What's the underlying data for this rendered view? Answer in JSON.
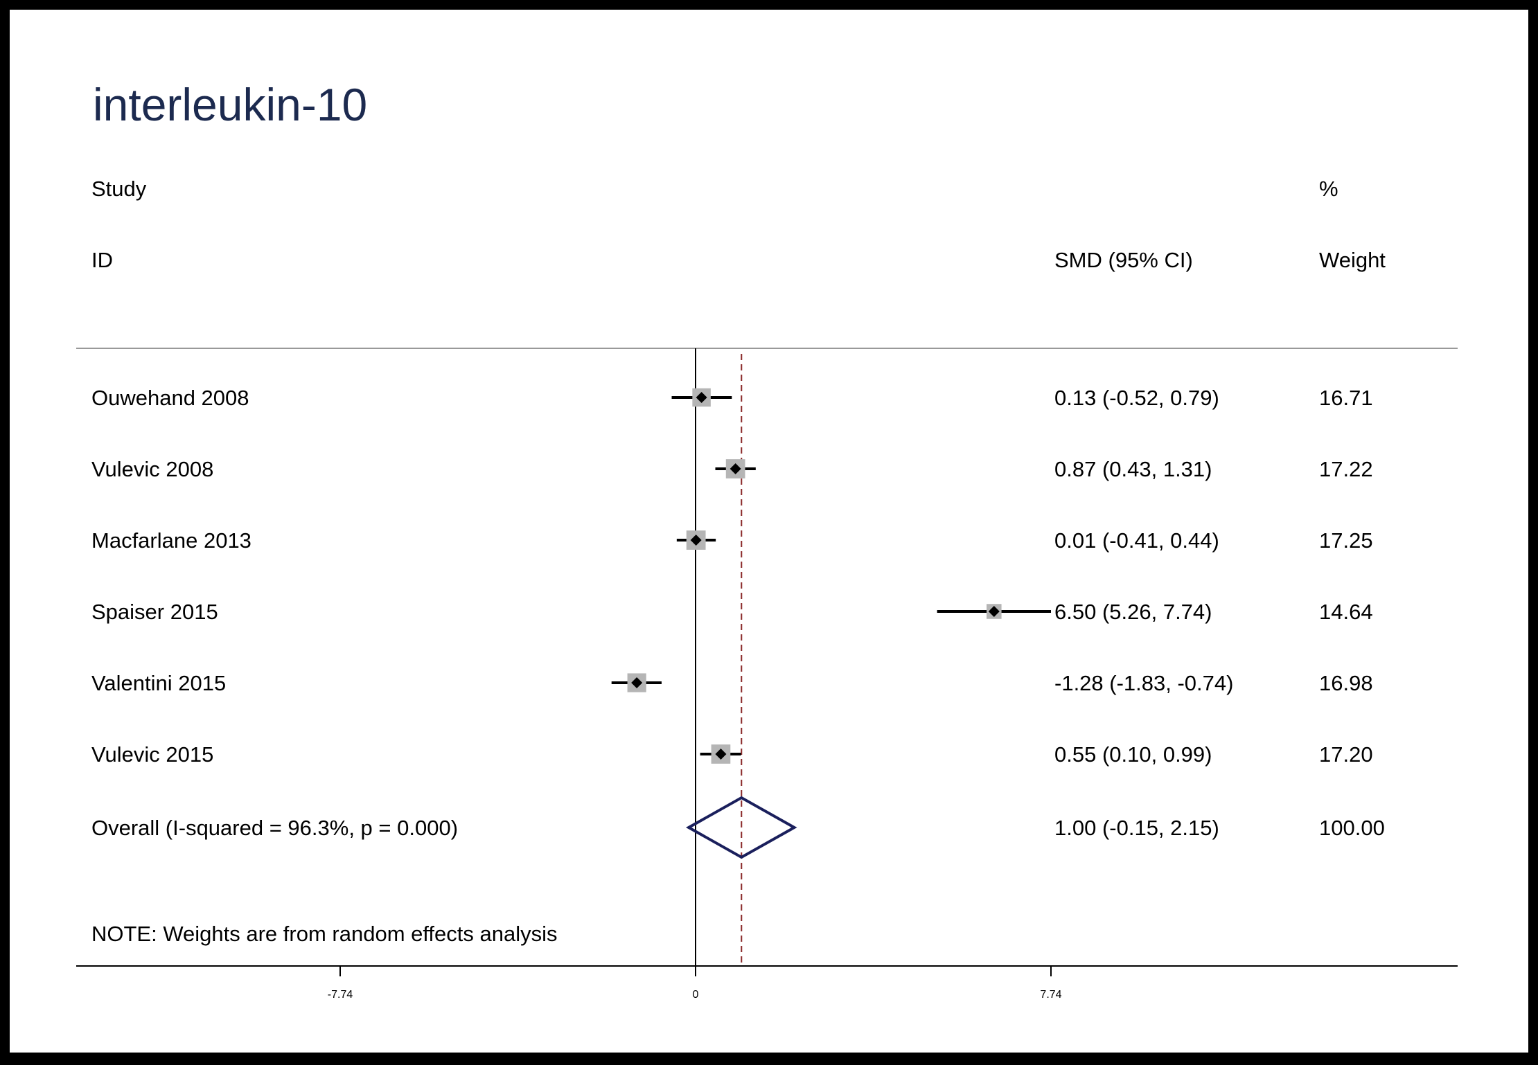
{
  "chart_data": {
    "type": "forest",
    "title": "interleukin-10",
    "headers": {
      "study_line1": "Study",
      "study_line2": "ID",
      "effect": "SMD (95% CI)",
      "weight_line1": "%",
      "weight_line2": "Weight"
    },
    "studies": [
      {
        "label": "Ouwehand 2008",
        "smd": 0.13,
        "lo": -0.52,
        "hi": 0.79,
        "ci_text": "0.13 (-0.52, 0.79)",
        "weight_text": "16.71",
        "weight": 16.71
      },
      {
        "label": "Vulevic 2008",
        "smd": 0.87,
        "lo": 0.43,
        "hi": 1.31,
        "ci_text": "0.87 (0.43, 1.31)",
        "weight_text": "17.22",
        "weight": 17.22
      },
      {
        "label": "Macfarlane 2013",
        "smd": 0.01,
        "lo": -0.41,
        "hi": 0.44,
        "ci_text": "0.01 (-0.41, 0.44)",
        "weight_text": "17.25",
        "weight": 17.25
      },
      {
        "label": "Spaiser 2015",
        "smd": 6.5,
        "lo": 5.26,
        "hi": 7.74,
        "ci_text": "6.50 (5.26, 7.74)",
        "weight_text": "14.64",
        "weight": 14.64
      },
      {
        "label": "Valentini 2015",
        "smd": -1.28,
        "lo": -1.83,
        "hi": -0.74,
        "ci_text": "-1.28 (-1.83, -0.74)",
        "weight_text": "16.98",
        "weight": 16.98
      },
      {
        "label": "Vulevic 2015",
        "smd": 0.55,
        "lo": 0.1,
        "hi": 0.99,
        "ci_text": "0.55 (0.10, 0.99)",
        "weight_text": "17.20",
        "weight": 17.2
      }
    ],
    "overall": {
      "label": "Overall  (I-squared = 96.3%, p = 0.000)",
      "smd": 1.0,
      "lo": -0.15,
      "hi": 2.15,
      "ci_text": "1.00 (-0.15, 2.15)",
      "weight_text": "100.00"
    },
    "note": "NOTE: Weights are from random effects analysis",
    "x_ticks": [
      {
        "value": -7.74,
        "label": "-7.74"
      },
      {
        "value": 0,
        "label": "0"
      },
      {
        "value": 7.74,
        "label": "7.74"
      }
    ],
    "xlim": [
      -7.74,
      7.74
    ],
    "null_line": 0,
    "colors": {
      "title": "#1c2a4f",
      "diamond": "#1a1f5c",
      "overall_line": "#8b2a2a",
      "weight_box": "#b5b5b5",
      "frame": "#000000"
    }
  }
}
